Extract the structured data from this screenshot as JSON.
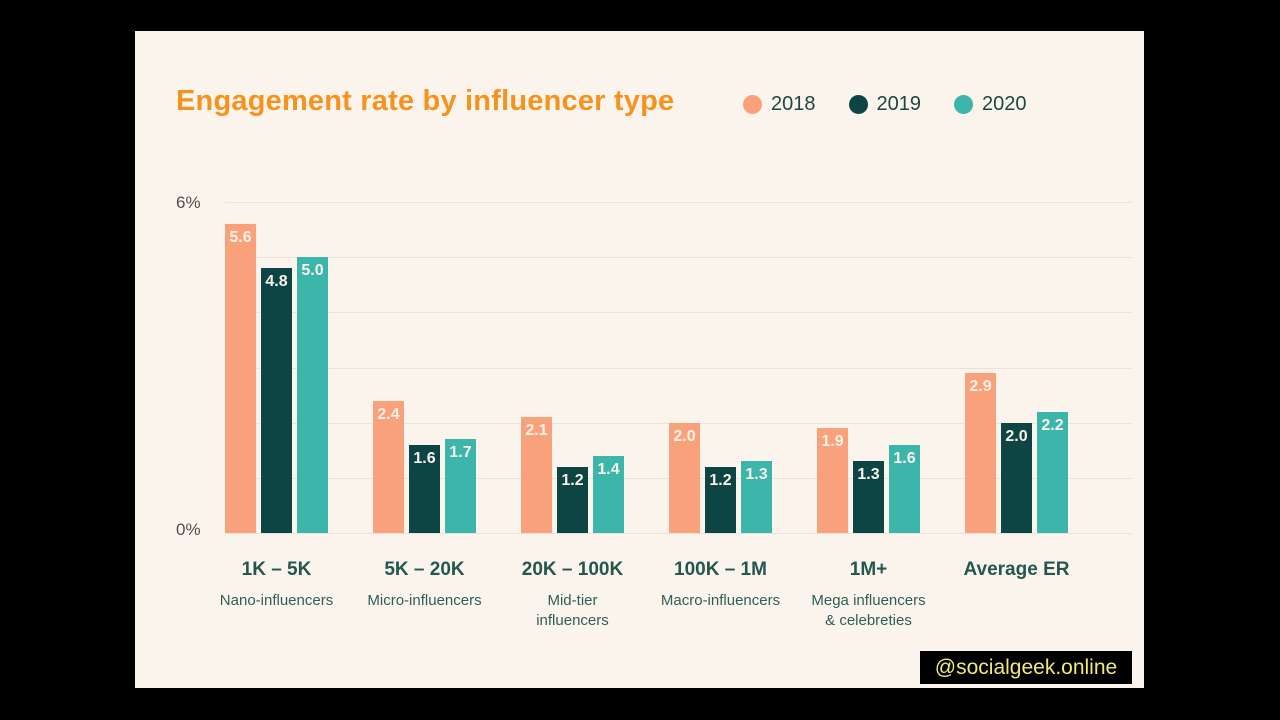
{
  "header": {
    "title": "Engagement rate by influencer type",
    "title_color": "#F6921E"
  },
  "legend": [
    {
      "label": "2018",
      "color": "#F9A17B"
    },
    {
      "label": "2019",
      "color": "#0C4543"
    },
    {
      "label": "2020",
      "color": "#3CB5AA"
    }
  ],
  "axis": {
    "top_label": "6%",
    "bottom_label": "0%"
  },
  "chart_data": {
    "type": "bar",
    "title": "Engagement rate by influencer type",
    "categories": [
      "1K – 5K",
      "5K – 20K",
      "20K – 100K",
      "100K – 1M",
      "1M+",
      "Average ER"
    ],
    "category_sublabels": [
      "Nano-influencers",
      "Micro-influencers",
      "Mid-tier\ninfluencers",
      "Macro-influencers",
      "Mega influencers\n& celebreties",
      ""
    ],
    "series": [
      {
        "name": "2018",
        "color": "#F9A17B",
        "values": [
          5.6,
          2.4,
          2.1,
          2.0,
          1.9,
          2.9
        ]
      },
      {
        "name": "2019",
        "color": "#0C4543",
        "values": [
          4.8,
          1.6,
          1.2,
          1.2,
          1.3,
          2.0
        ]
      },
      {
        "name": "2020",
        "color": "#3CB5AA",
        "values": [
          5.0,
          1.7,
          1.4,
          1.3,
          1.6,
          2.2
        ]
      }
    ],
    "ylim": [
      0,
      6
    ],
    "y_tick_labels_shown": [
      "6%",
      "0%"
    ],
    "grid": true,
    "legend_position": "top-right",
    "background": "#FBF4ED"
  },
  "watermark": {
    "text": "@socialgeek.online",
    "bg_color": "#000000",
    "text_color": "#EEEA72"
  }
}
